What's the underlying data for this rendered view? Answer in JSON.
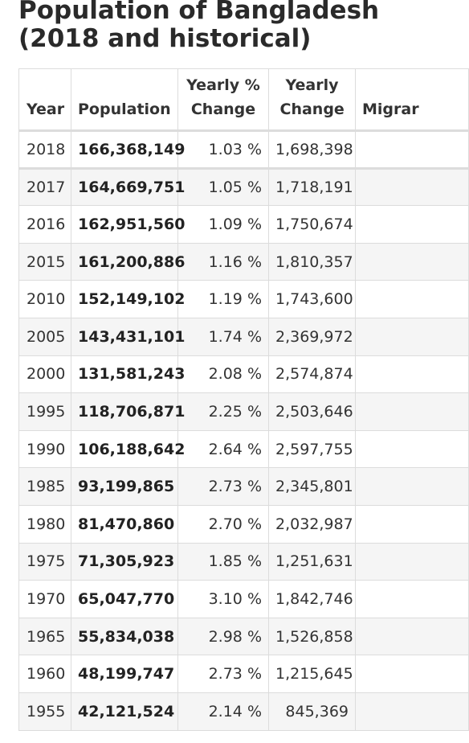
{
  "page": {
    "title": "Population of Bangladesh (2018 and historical)"
  },
  "table": {
    "headers": {
      "year": "Year",
      "population": "Population",
      "yearly_pct_change": "Yearly % Change",
      "yearly_change": "Yearly Change",
      "migrants": "Migrar"
    },
    "rows": [
      {
        "year": "2018",
        "population": "166,368,149",
        "pct": "1.03 %",
        "change": "1,698,398"
      },
      {
        "year": "2017",
        "population": "164,669,751",
        "pct": "1.05 %",
        "change": "1,718,191"
      },
      {
        "year": "2016",
        "population": "162,951,560",
        "pct": "1.09 %",
        "change": "1,750,674"
      },
      {
        "year": "2015",
        "population": "161,200,886",
        "pct": "1.16 %",
        "change": "1,810,357"
      },
      {
        "year": "2010",
        "population": "152,149,102",
        "pct": "1.19 %",
        "change": "1,743,600"
      },
      {
        "year": "2005",
        "population": "143,431,101",
        "pct": "1.74 %",
        "change": "2,369,972"
      },
      {
        "year": "2000",
        "population": "131,581,243",
        "pct": "2.08 %",
        "change": "2,574,874"
      },
      {
        "year": "1995",
        "population": "118,706,871",
        "pct": "2.25 %",
        "change": "2,503,646"
      },
      {
        "year": "1990",
        "population": "106,188,642",
        "pct": "2.64 %",
        "change": "2,597,755"
      },
      {
        "year": "1985",
        "population": "93,199,865",
        "pct": "2.73 %",
        "change": "2,345,801"
      },
      {
        "year": "1980",
        "population": "81,470,860",
        "pct": "2.70 %",
        "change": "2,032,987"
      },
      {
        "year": "1975",
        "population": "71,305,923",
        "pct": "1.85 %",
        "change": "1,251,631"
      },
      {
        "year": "1970",
        "population": "65,047,770",
        "pct": "3.10 %",
        "change": "1,842,746"
      },
      {
        "year": "1965",
        "population": "55,834,038",
        "pct": "2.98 %",
        "change": "1,526,858"
      },
      {
        "year": "1960",
        "population": "48,199,747",
        "pct": "2.73 %",
        "change": "1,215,645"
      },
      {
        "year": "1955",
        "population": "42,121,524",
        "pct": "2.14 %",
        "change": "845,369"
      }
    ]
  }
}
